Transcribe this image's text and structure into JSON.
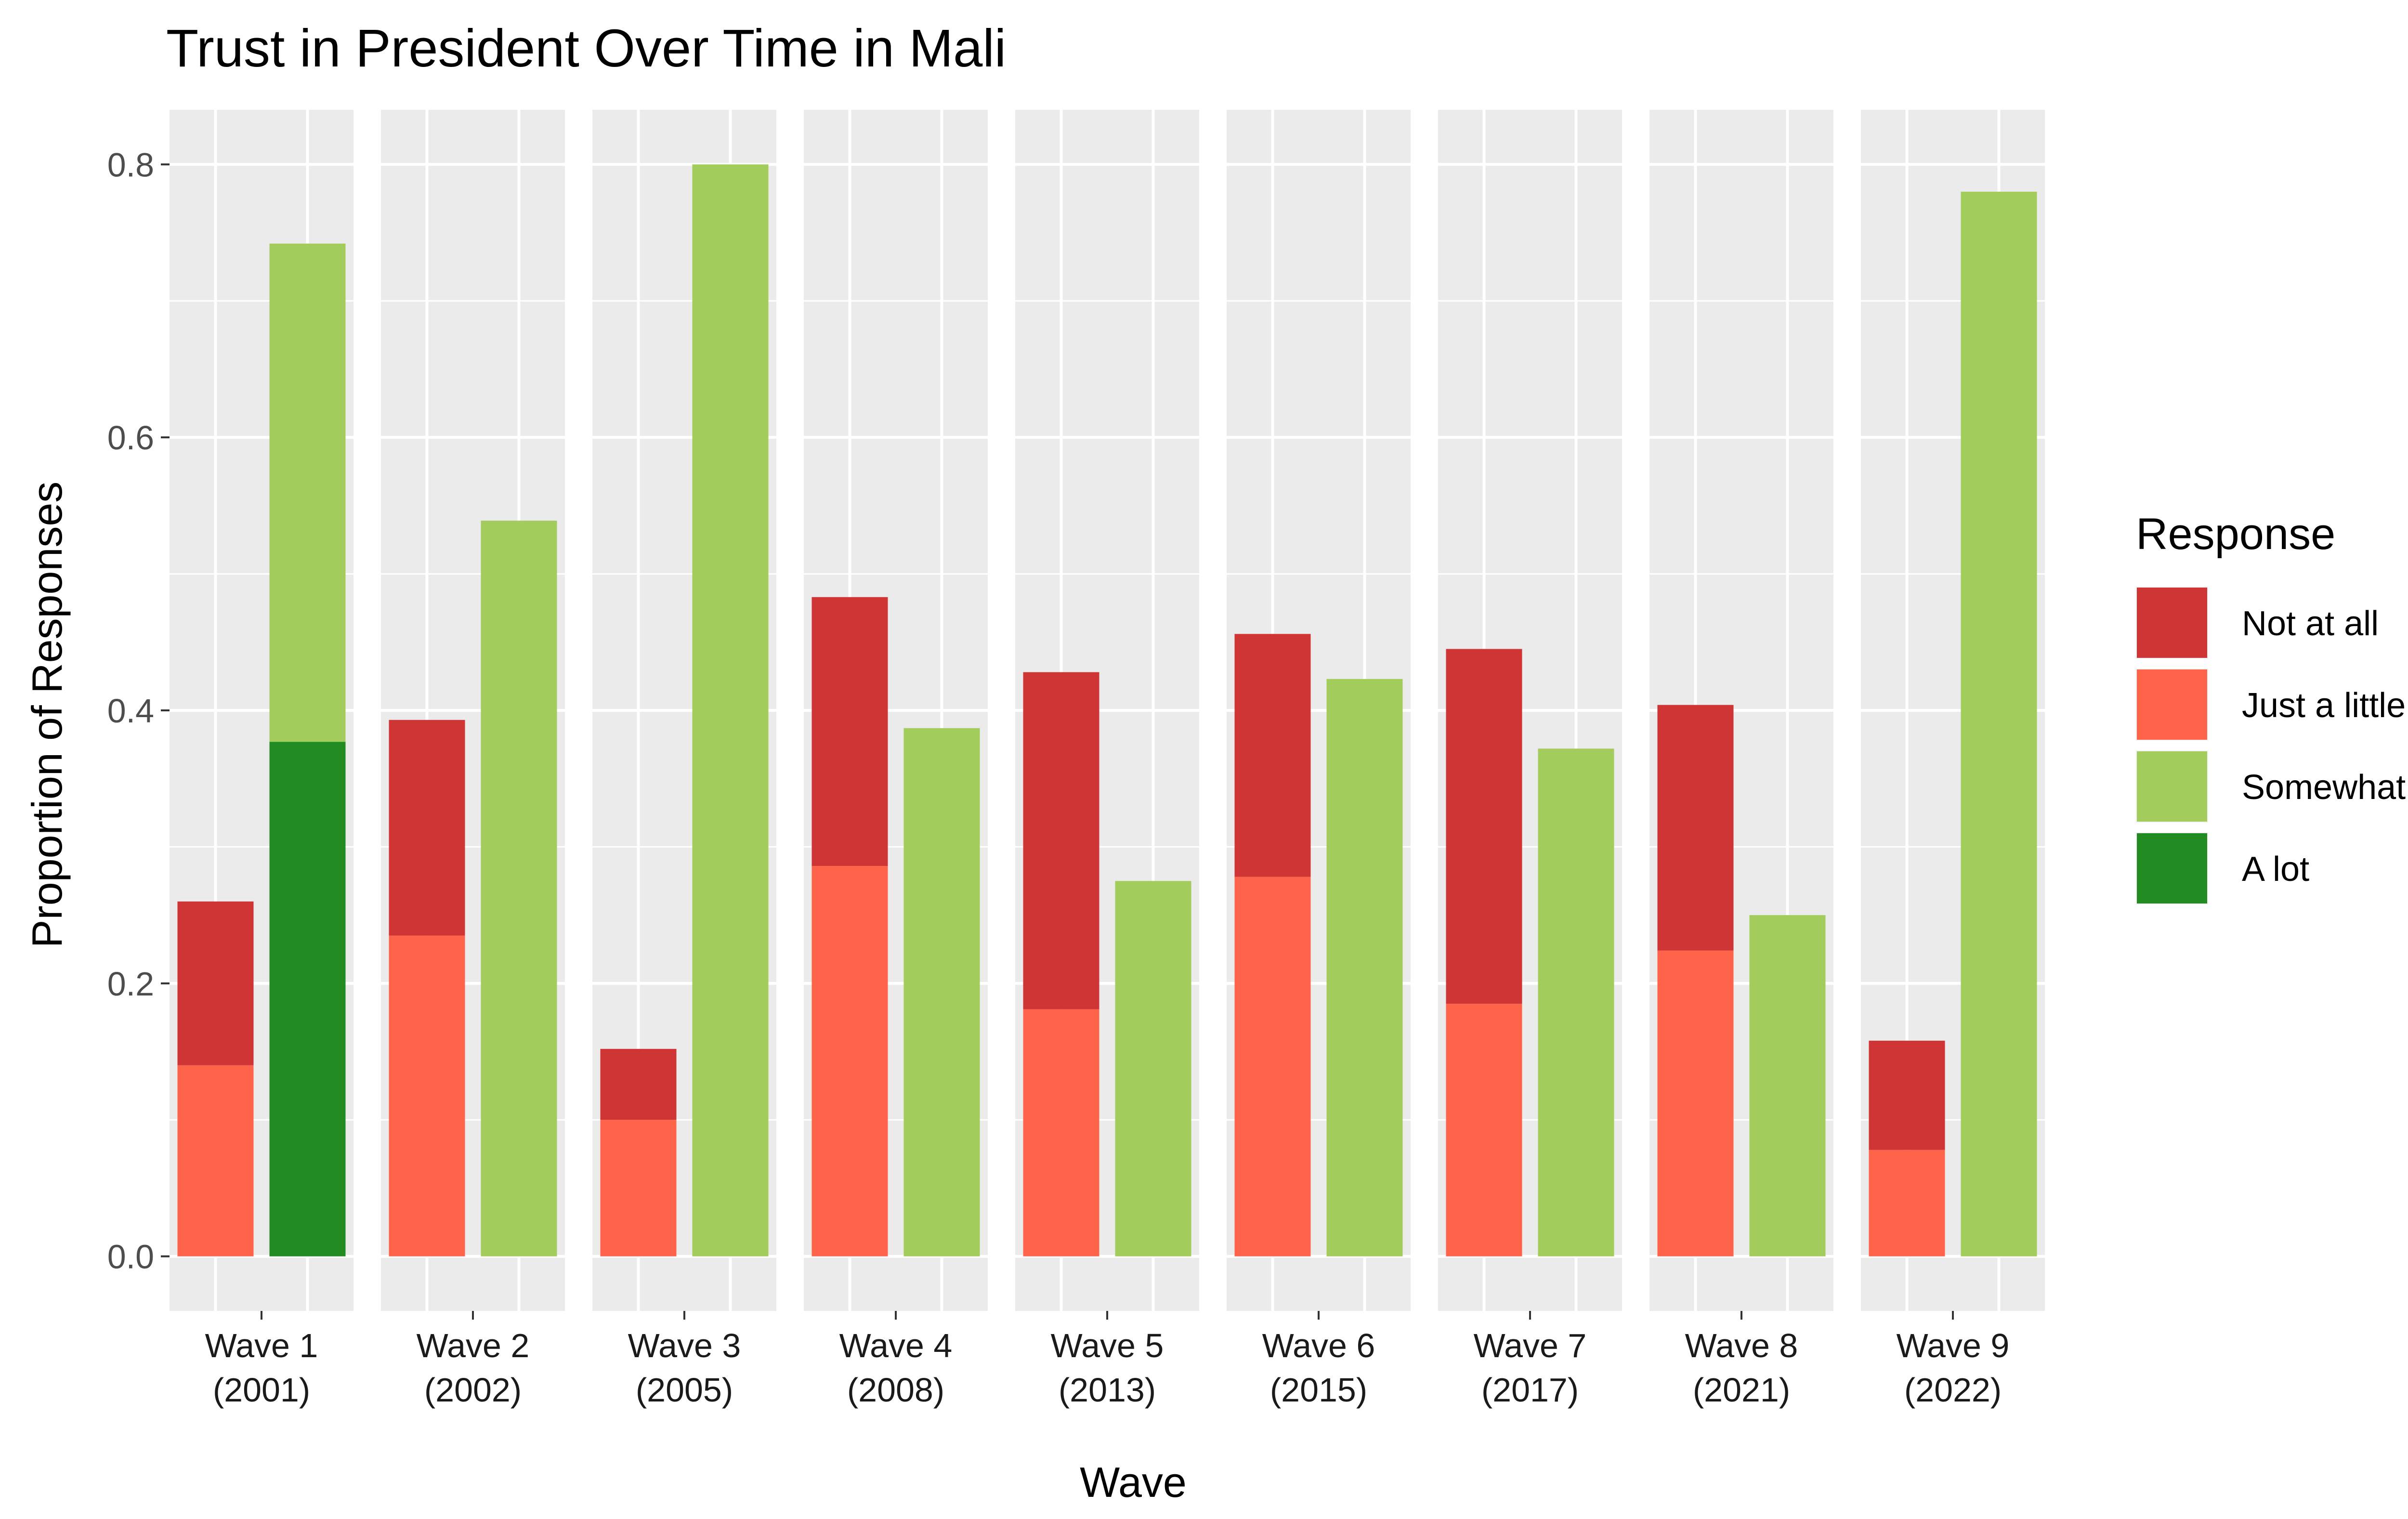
{
  "chart_data": {
    "type": "bar",
    "title": "Trust in President Over Time in Mali",
    "xlabel": "Wave",
    "ylabel": "Proportion of Responses",
    "ylim": [
      -0.04,
      0.84
    ],
    "yticks": [
      0.0,
      0.2,
      0.4,
      0.6,
      0.8
    ],
    "ytick_labels": [
      "0.0",
      "0.2",
      "0.4",
      "0.6",
      "0.8"
    ],
    "grid": true,
    "facets": [
      {
        "label_line1": "Wave 1",
        "label_line2": "(2001)"
      },
      {
        "label_line1": "Wave 2",
        "label_line2": "(2002)"
      },
      {
        "label_line1": "Wave 3",
        "label_line2": "(2005)"
      },
      {
        "label_line1": "Wave 4",
        "label_line2": "(2008)"
      },
      {
        "label_line1": "Wave 5",
        "label_line2": "(2013)"
      },
      {
        "label_line1": "Wave 6",
        "label_line2": "(2015)"
      },
      {
        "label_line1": "Wave 7",
        "label_line2": "(2017)"
      },
      {
        "label_line1": "Wave 8",
        "label_line2": "(2021)"
      },
      {
        "label_line1": "Wave 9",
        "label_line2": "(2022)"
      }
    ],
    "series": [
      {
        "name": "Not at all",
        "color": "#d03535",
        "values": [
          0.12,
          0.158,
          0.052,
          0.197,
          0.247,
          0.178,
          0.26,
          0.18,
          0.08
        ]
      },
      {
        "name": "Just a little",
        "color": "#ff644b",
        "values": [
          0.14,
          0.235,
          0.1,
          0.286,
          0.181,
          0.278,
          0.185,
          0.224,
          0.078
        ]
      },
      {
        "name": "Somewhat",
        "color": "#a2cc5b",
        "values": [
          0.365,
          0.539,
          0.8,
          0.387,
          0.275,
          0.423,
          0.372,
          0.25,
          0.78
        ]
      },
      {
        "name": "A lot",
        "color": "#228b22",
        "values": [
          0.377,
          0,
          0,
          0,
          0,
          0,
          0,
          0,
          0
        ]
      }
    ],
    "legend": {
      "title": "Response",
      "position": "right",
      "entries": [
        "Not at all",
        "Just a little",
        "Somewhat",
        "A lot"
      ]
    }
  }
}
